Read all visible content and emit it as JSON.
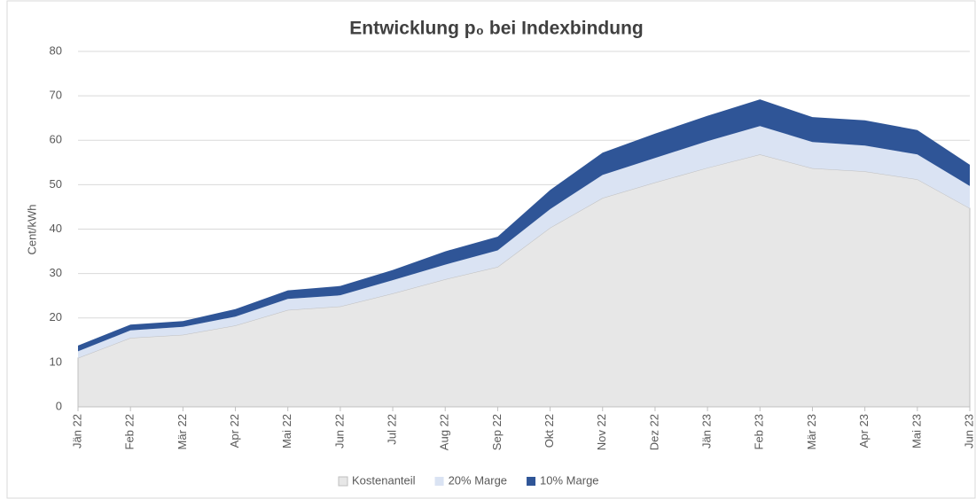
{
  "chart_data": {
    "type": "stacked_area",
    "title": "Entwicklung p₀ bei Indexbindung",
    "y_label": "Cent/kWh",
    "categories": [
      "Jän 22",
      "Feb 22",
      "Mär 22",
      "Apr 22",
      "Mai 22",
      "Jun 22",
      "Jul 22",
      "Aug 22",
      "Sep 22",
      "Okt 22",
      "Nov 22",
      "Dez 22",
      "Jän 23",
      "Feb 23",
      "Mär 23",
      "Apr 23",
      "Mai 23",
      "Jun 23"
    ],
    "series": [
      {
        "name": "Kostenanteil",
        "color": "#e7e7e7",
        "values": [
          11,
          15.5,
          16.2,
          18.3,
          21.8,
          22.6,
          25.5,
          28.7,
          31.5,
          40.3,
          47,
          50.5,
          53.8,
          56.8,
          53.7,
          53,
          51.2,
          44.7
        ]
      },
      {
        "name": "20% Marge",
        "color": "#dae3f3",
        "values": [
          1.5,
          1.7,
          1.8,
          2,
          2.5,
          2.5,
          3,
          3.3,
          3.7,
          4.2,
          5.2,
          5.5,
          6,
          6.4,
          5.9,
          5.8,
          5.6,
          5
        ]
      },
      {
        "name": "10% Marge",
        "color": "#2f5597",
        "values": [
          1.3,
          1.3,
          1.3,
          1.7,
          1.9,
          2.1,
          2.3,
          3,
          3.1,
          4.3,
          5,
          5.5,
          5.7,
          6,
          5.6,
          5.7,
          5.5,
          4.8
        ]
      }
    ],
    "ylim": [
      0,
      80
    ],
    "yticks": [
      0,
      10,
      20,
      30,
      40,
      50,
      60,
      70,
      80
    ],
    "grid": true,
    "legend": "bottom"
  }
}
